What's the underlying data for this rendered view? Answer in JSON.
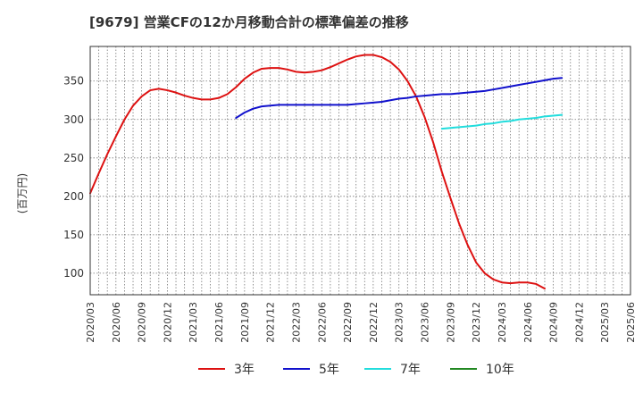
{
  "chart_data": {
    "type": "line",
    "title": "[9679]  営業CFの12か月移動合計の標準偏差の推移",
    "ylabel": "(百万円)",
    "xlabel": "",
    "ylim": [
      72,
      395
    ],
    "yticks": [
      100,
      150,
      200,
      250,
      300,
      350
    ],
    "xtick_labels": [
      "2020/03",
      "2020/06",
      "2020/09",
      "2020/12",
      "2021/03",
      "2021/06",
      "2021/09",
      "2021/12",
      "2022/03",
      "2022/06",
      "2022/09",
      "2022/12",
      "2023/03",
      "2023/06",
      "2023/09",
      "2023/12",
      "2024/03",
      "2024/06",
      "2024/09",
      "2024/12",
      "2025/03",
      "2025/06"
    ],
    "grid": true,
    "legend_position": "bottom",
    "series": [
      {
        "name": "3年",
        "color": "#dd1111",
        "points": [
          [
            "2020/03",
            204
          ],
          [
            "2020/04",
            230
          ],
          [
            "2020/05",
            255
          ],
          [
            "2020/06",
            278
          ],
          [
            "2020/07",
            300
          ],
          [
            "2020/08",
            318
          ],
          [
            "2020/09",
            330
          ],
          [
            "2020/10",
            338
          ],
          [
            "2020/11",
            340
          ],
          [
            "2020/12",
            338
          ],
          [
            "2021/01",
            335
          ],
          [
            "2021/02",
            331
          ],
          [
            "2021/03",
            328
          ],
          [
            "2021/04",
            326
          ],
          [
            "2021/05",
            326
          ],
          [
            "2021/06",
            328
          ],
          [
            "2021/07",
            333
          ],
          [
            "2021/08",
            342
          ],
          [
            "2021/09",
            353
          ],
          [
            "2021/10",
            361
          ],
          [
            "2021/11",
            366
          ],
          [
            "2021/12",
            367
          ],
          [
            "2022/01",
            367
          ],
          [
            "2022/02",
            365
          ],
          [
            "2022/03",
            362
          ],
          [
            "2022/04",
            361
          ],
          [
            "2022/05",
            362
          ],
          [
            "2022/06",
            364
          ],
          [
            "2022/07",
            368
          ],
          [
            "2022/08",
            373
          ],
          [
            "2022/09",
            378
          ],
          [
            "2022/10",
            382
          ],
          [
            "2022/11",
            384
          ],
          [
            "2022/12",
            384
          ],
          [
            "2023/01",
            381
          ],
          [
            "2023/02",
            375
          ],
          [
            "2023/03",
            365
          ],
          [
            "2023/04",
            350
          ],
          [
            "2023/05",
            330
          ],
          [
            "2023/06",
            303
          ],
          [
            "2023/07",
            270
          ],
          [
            "2023/08",
            232
          ],
          [
            "2023/09",
            198
          ],
          [
            "2023/10",
            165
          ],
          [
            "2023/11",
            137
          ],
          [
            "2023/12",
            114
          ],
          [
            "2024/01",
            100
          ],
          [
            "2024/02",
            92
          ],
          [
            "2024/03",
            88
          ],
          [
            "2024/04",
            87
          ],
          [
            "2024/05",
            88
          ],
          [
            "2024/06",
            88
          ],
          [
            "2024/07",
            86
          ],
          [
            "2024/08",
            80
          ]
        ]
      },
      {
        "name": "5年",
        "color": "#1111cc",
        "points": [
          [
            "2021/08",
            302
          ],
          [
            "2021/09",
            309
          ],
          [
            "2021/10",
            314
          ],
          [
            "2021/11",
            317
          ],
          [
            "2021/12",
            318
          ],
          [
            "2022/01",
            319
          ],
          [
            "2022/02",
            319
          ],
          [
            "2022/03",
            319
          ],
          [
            "2022/04",
            319
          ],
          [
            "2022/05",
            319
          ],
          [
            "2022/06",
            319
          ],
          [
            "2022/07",
            319
          ],
          [
            "2022/08",
            319
          ],
          [
            "2022/09",
            319
          ],
          [
            "2022/10",
            320
          ],
          [
            "2022/11",
            321
          ],
          [
            "2022/12",
            322
          ],
          [
            "2023/01",
            323
          ],
          [
            "2023/02",
            325
          ],
          [
            "2023/03",
            327
          ],
          [
            "2023/04",
            328
          ],
          [
            "2023/05",
            330
          ],
          [
            "2023/06",
            331
          ],
          [
            "2023/07",
            332
          ],
          [
            "2023/08",
            333
          ],
          [
            "2023/09",
            333
          ],
          [
            "2023/10",
            334
          ],
          [
            "2023/11",
            335
          ],
          [
            "2023/12",
            336
          ],
          [
            "2024/01",
            337
          ],
          [
            "2024/02",
            339
          ],
          [
            "2024/03",
            341
          ],
          [
            "2024/04",
            343
          ],
          [
            "2024/05",
            345
          ],
          [
            "2024/06",
            347
          ],
          [
            "2024/07",
            349
          ],
          [
            "2024/08",
            351
          ],
          [
            "2024/09",
            353
          ],
          [
            "2024/10",
            354
          ]
        ]
      },
      {
        "name": "7年",
        "color": "#22dddd",
        "points": [
          [
            "2023/08",
            288
          ],
          [
            "2023/09",
            289
          ],
          [
            "2023/10",
            290
          ],
          [
            "2023/11",
            291
          ],
          [
            "2023/12",
            292
          ],
          [
            "2024/01",
            294
          ],
          [
            "2024/02",
            295
          ],
          [
            "2024/03",
            297
          ],
          [
            "2024/04",
            298
          ],
          [
            "2024/05",
            300
          ],
          [
            "2024/06",
            301
          ],
          [
            "2024/07",
            302
          ],
          [
            "2024/08",
            304
          ],
          [
            "2024/09",
            305
          ],
          [
            "2024/10",
            306
          ]
        ]
      },
      {
        "name": "10年",
        "color": "#228822",
        "points": []
      }
    ]
  }
}
